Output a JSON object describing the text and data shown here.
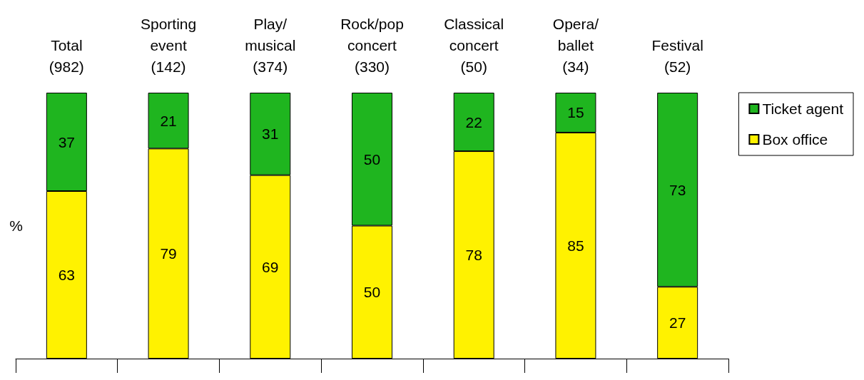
{
  "chart_data": {
    "type": "bar",
    "stacked": true,
    "ylabel": "%",
    "categories": [
      "Total\n(982)",
      "Sporting\nevent\n(142)",
      "Play/\nmusical\n(374)",
      "Rock/pop\nconcert\n(330)",
      "Classical\nconcert\n(50)",
      "Opera/\nballet\n(34)",
      "Festival\n(52)"
    ],
    "series": [
      {
        "name": "Box office",
        "color": "#fff200",
        "values": [
          63,
          79,
          69,
          50,
          78,
          85,
          27
        ]
      },
      {
        "name": "Ticket agent",
        "color": "#1fb51f",
        "values": [
          37,
          21,
          31,
          50,
          22,
          15,
          73
        ]
      }
    ],
    "data_labels": true,
    "legend": "right",
    "grid": false
  }
}
